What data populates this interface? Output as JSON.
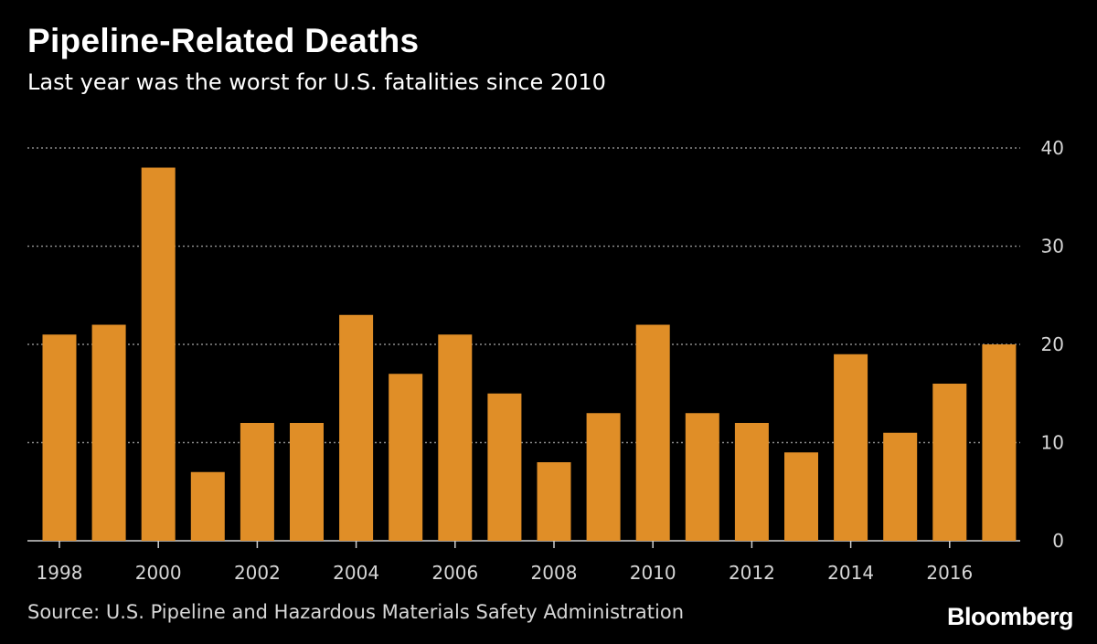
{
  "header": {
    "title": "Pipeline-Related Deaths",
    "subtitle": "Last year was the worst for U.S. fatalities since 2010"
  },
  "footer": {
    "source": "Source: U.S. Pipeline and Hazardous Materials Safety Administration",
    "brand": "Bloomberg"
  },
  "colors": {
    "background": "#000000",
    "bar": "#e08e27",
    "grid": "#8a8a8a",
    "text": "#ffffff",
    "axis_text": "#d6d6d6"
  },
  "chart_data": {
    "type": "bar",
    "title": "Pipeline-Related Deaths",
    "subtitle": "Last year was the worst for U.S. fatalities since 2010",
    "categories": [
      "1998",
      "1999",
      "2000",
      "2001",
      "2002",
      "2003",
      "2004",
      "2005",
      "2006",
      "2007",
      "2008",
      "2009",
      "2010",
      "2011",
      "2012",
      "2013",
      "2014",
      "2015",
      "2016",
      "2017"
    ],
    "values": [
      21,
      22,
      38,
      7,
      12,
      12,
      23,
      17,
      21,
      15,
      8,
      13,
      22,
      13,
      12,
      9,
      19,
      11,
      16,
      20
    ],
    "x_tick_labels": [
      "1998",
      "2000",
      "2002",
      "2004",
      "2006",
      "2008",
      "2010",
      "2012",
      "2014",
      "2016"
    ],
    "y_ticks": [
      0,
      10,
      20,
      30,
      40
    ],
    "ylim": [
      0,
      40
    ],
    "y_axis_side": "right",
    "grid": true,
    "xlabel": "",
    "ylabel": ""
  }
}
